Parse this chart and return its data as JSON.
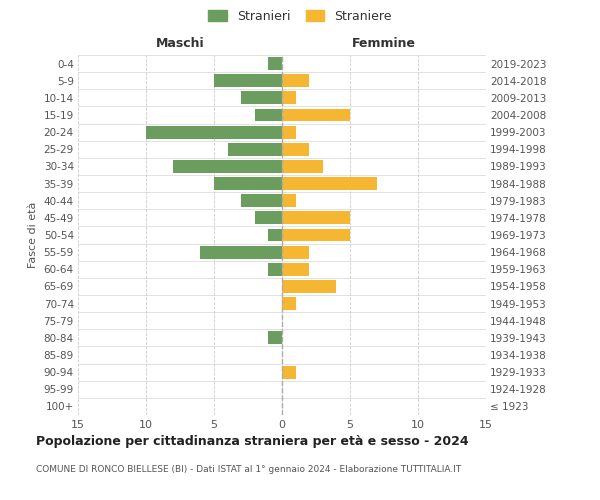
{
  "age_groups": [
    "100+",
    "95-99",
    "90-94",
    "85-89",
    "80-84",
    "75-79",
    "70-74",
    "65-69",
    "60-64",
    "55-59",
    "50-54",
    "45-49",
    "40-44",
    "35-39",
    "30-34",
    "25-29",
    "20-24",
    "15-19",
    "10-14",
    "5-9",
    "0-4"
  ],
  "birth_years": [
    "≤ 1923",
    "1924-1928",
    "1929-1933",
    "1934-1938",
    "1939-1943",
    "1944-1948",
    "1949-1953",
    "1954-1958",
    "1959-1963",
    "1964-1968",
    "1969-1973",
    "1974-1978",
    "1979-1983",
    "1984-1988",
    "1989-1993",
    "1994-1998",
    "1999-2003",
    "2004-2008",
    "2009-2013",
    "2014-2018",
    "2019-2023"
  ],
  "maschi": [
    0,
    0,
    0,
    0,
    1,
    0,
    0,
    0,
    1,
    6,
    1,
    2,
    3,
    5,
    8,
    4,
    10,
    2,
    3,
    5,
    1
  ],
  "femmine": [
    0,
    0,
    1,
    0,
    0,
    0,
    1,
    4,
    2,
    2,
    5,
    5,
    1,
    7,
    3,
    2,
    1,
    5,
    1,
    2,
    0
  ],
  "maschi_color": "#6b9e5e",
  "femmine_color": "#f5b731",
  "background_color": "#ffffff",
  "grid_color": "#cccccc",
  "title": "Popolazione per cittadinanza straniera per età e sesso - 2024",
  "subtitle": "COMUNE DI RONCO BIELLESE (BI) - Dati ISTAT al 1° gennaio 2024 - Elaborazione TUTTITALIA.IT",
  "xlabel_left": "Maschi",
  "xlabel_right": "Femmine",
  "ylabel_left": "Fasce di età",
  "legend_maschi": "Stranieri",
  "legend_femmine": "Straniere",
  "xlim": 15,
  "figsize": [
    6.0,
    5.0
  ],
  "dpi": 100
}
